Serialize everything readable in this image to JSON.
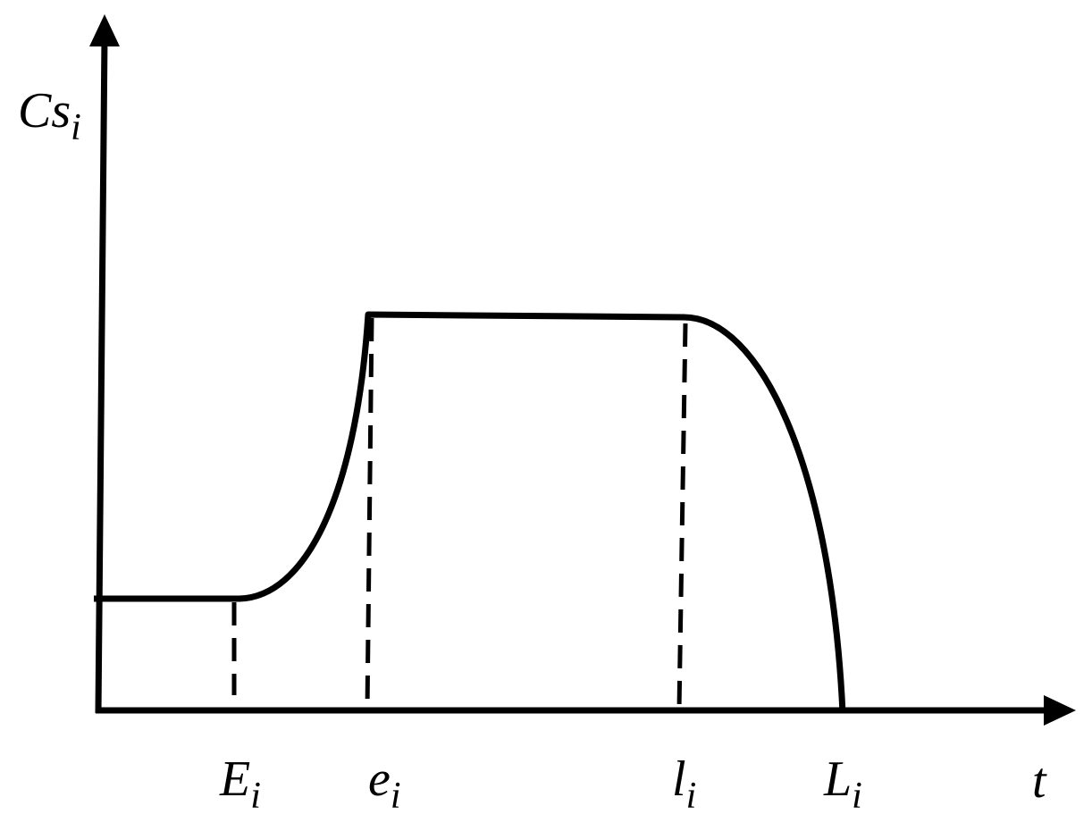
{
  "y_axis_label": {
    "main": "Cs",
    "sub": "i"
  },
  "x_axis_label": "t",
  "x_labels": [
    {
      "main": "E",
      "sub": "i"
    },
    {
      "main": "e",
      "sub": "i"
    },
    {
      "main": "l",
      "sub": "i"
    },
    {
      "main": "L",
      "sub": "i"
    }
  ]
}
